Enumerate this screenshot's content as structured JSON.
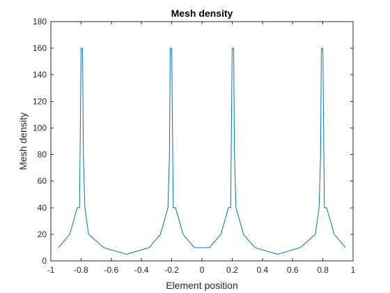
{
  "chart_data": {
    "type": "line",
    "title": "Mesh density",
    "xlabel": "Element position",
    "ylabel": "Mesh density",
    "xlim": [
      -1,
      1
    ],
    "ylim": [
      0,
      180
    ],
    "xticks": [
      -1,
      -0.8,
      -0.6,
      -0.4,
      -0.2,
      0,
      0.2,
      0.4,
      0.6,
      0.8,
      1
    ],
    "yticks": [
      0,
      20,
      40,
      60,
      80,
      100,
      120,
      140,
      160,
      180
    ],
    "xtick_labels": [
      "-1",
      "-0.8",
      "-0.6",
      "-0.4",
      "-0.2",
      "0",
      "0.2",
      "0.4",
      "0.6",
      "0.8",
      "1"
    ],
    "ytick_labels": [
      "0",
      "20",
      "40",
      "60",
      "80",
      "100",
      "120",
      "140",
      "160",
      "180"
    ],
    "grid": false,
    "line_color": "#0072BD",
    "series": [
      {
        "x": [
          -0.95,
          -0.875,
          -0.825,
          -0.81,
          -0.8,
          -0.79,
          -0.785,
          -0.775,
          -0.75,
          -0.65,
          -0.5,
          -0.35,
          -0.275,
          -0.225,
          -0.215,
          -0.21,
          -0.2,
          -0.19,
          -0.175,
          -0.125,
          -0.05,
          0.05,
          0.125,
          0.175,
          0.19,
          0.2,
          0.21,
          0.215,
          0.225,
          0.275,
          0.35,
          0.5,
          0.65,
          0.75,
          0.775,
          0.785,
          0.79,
          0.8,
          0.81,
          0.825,
          0.875,
          0.95
        ],
        "y": [
          10,
          20,
          40,
          40,
          160,
          160,
          80,
          40,
          20,
          10,
          5,
          10,
          20,
          40,
          80,
          160,
          160,
          40,
          40,
          20,
          10,
          10,
          20,
          40,
          40,
          160,
          160,
          80,
          40,
          20,
          10,
          5,
          10,
          20,
          40,
          80,
          160,
          160,
          40,
          40,
          20,
          10
        ]
      }
    ]
  }
}
